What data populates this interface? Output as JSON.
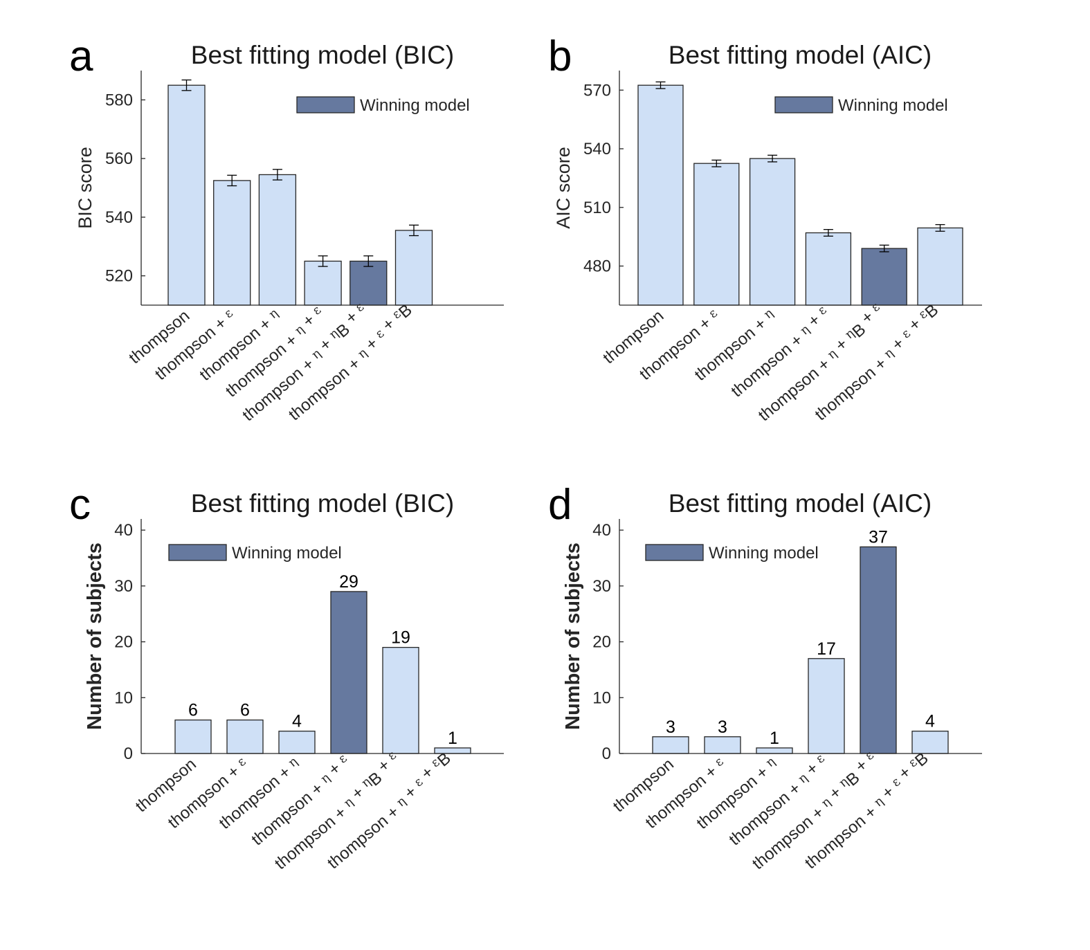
{
  "colors": {
    "bar_fill": "#cfe0f6",
    "winner_fill": "#66799f",
    "edge": "#262626"
  },
  "chart_data": [
    {
      "panel": "a",
      "type": "bar",
      "title": "Best fitting model (BIC)",
      "xlabel": "",
      "ylabel": "BIC score",
      "ylim": [
        510,
        590
      ],
      "yticks": [
        520,
        540,
        560,
        580
      ],
      "categories": [
        [
          "thompson"
        ],
        [
          "thompson + ",
          {
            "s": "ε"
          }
        ],
        [
          "thompson + ",
          {
            "s": "η"
          }
        ],
        [
          "thompson + ",
          {
            "s": "η"
          },
          " + ",
          {
            "s": "ε"
          }
        ],
        [
          "thompson + ",
          {
            "s": "η"
          },
          " + ",
          {
            "s": "η"
          },
          {
            "sub": "B"
          },
          " + ",
          {
            "s": "ε"
          }
        ],
        [
          "thompson + ",
          {
            "s": "η"
          },
          " + ",
          {
            "s": "ε"
          },
          " + ",
          {
            "s": "ε"
          },
          {
            "sub": "B"
          }
        ]
      ],
      "values": [
        585,
        552.5,
        554.5,
        525,
        525,
        535.5
      ],
      "errors": [
        1.8,
        1.8,
        1.8,
        1.8,
        1.8,
        1.8
      ],
      "winner_index": 4,
      "legend": {
        "label": "Winning model",
        "position": "top-right"
      },
      "bar_labels": false
    },
    {
      "panel": "b",
      "type": "bar",
      "title": "Best fitting model (AIC)",
      "xlabel": "",
      "ylabel": "AIC score",
      "ylim": [
        460,
        580
      ],
      "yticks": [
        480,
        510,
        540,
        570
      ],
      "categories": [
        [
          "thompson"
        ],
        [
          "thompson + ",
          {
            "s": "ε"
          }
        ],
        [
          "thompson + ",
          {
            "s": "η"
          }
        ],
        [
          "thompson + ",
          {
            "s": "η"
          },
          " + ",
          {
            "s": "ε"
          }
        ],
        [
          "thompson + ",
          {
            "s": "η"
          },
          " + ",
          {
            "s": "η"
          },
          {
            "sub": "B"
          },
          " + ",
          {
            "s": "ε"
          }
        ],
        [
          "thompson + ",
          {
            "s": "η"
          },
          " + ",
          {
            "s": "ε"
          },
          " + ",
          {
            "s": "ε"
          },
          {
            "sub": "B"
          }
        ]
      ],
      "values": [
        572.5,
        532.5,
        535,
        497,
        489,
        499.5
      ],
      "errors": [
        1.7,
        1.7,
        1.7,
        1.7,
        1.7,
        1.7
      ],
      "winner_index": 4,
      "legend": {
        "label": "Winning model",
        "position": "top-right"
      },
      "bar_labels": false
    },
    {
      "panel": "c",
      "type": "bar",
      "title": "Best fitting model (BIC)",
      "xlabel": "",
      "ylabel": "Number of subjects",
      "ylim": [
        0,
        42
      ],
      "yticks": [
        0,
        10,
        20,
        30,
        40
      ],
      "categories": [
        [
          "thompson"
        ],
        [
          "thompson + ",
          {
            "s": "ε"
          }
        ],
        [
          "thompson + ",
          {
            "s": "η"
          }
        ],
        [
          "thompson + ",
          {
            "s": "η"
          },
          " + ",
          {
            "s": "ε"
          }
        ],
        [
          "thompson + ",
          {
            "s": "η"
          },
          " + ",
          {
            "s": "η"
          },
          {
            "sub": "B"
          },
          " + ",
          {
            "s": "ε"
          }
        ],
        [
          "thompson + ",
          {
            "s": "η"
          },
          " + ",
          {
            "s": "ε"
          },
          " + ",
          {
            "s": "ε"
          },
          {
            "sub": "B"
          }
        ]
      ],
      "values": [
        6,
        6,
        4,
        29,
        19,
        1
      ],
      "winner_index": 3,
      "legend": {
        "label": "Winning model",
        "position": "top-left"
      },
      "bar_labels": true
    },
    {
      "panel": "d",
      "type": "bar",
      "title": "Best fitting model (AIC)",
      "xlabel": "",
      "ylabel": "Number of subjects",
      "ylim": [
        0,
        42
      ],
      "yticks": [
        0,
        10,
        20,
        30,
        40
      ],
      "categories": [
        [
          "thompson"
        ],
        [
          "thompson + ",
          {
            "s": "ε"
          }
        ],
        [
          "thompson + ",
          {
            "s": "η"
          }
        ],
        [
          "thompson + ",
          {
            "s": "η"
          },
          " + ",
          {
            "s": "ε"
          }
        ],
        [
          "thompson + ",
          {
            "s": "η"
          },
          " + ",
          {
            "s": "η"
          },
          {
            "sub": "B"
          },
          " + ",
          {
            "s": "ε"
          }
        ],
        [
          "thompson + ",
          {
            "s": "η"
          },
          " + ",
          {
            "s": "ε"
          },
          " + ",
          {
            "s": "ε"
          },
          {
            "sub": "B"
          }
        ]
      ],
      "values": [
        3,
        3,
        1,
        17,
        37,
        4
      ],
      "winner_index": 4,
      "legend": {
        "label": "Winning model",
        "position": "top-left"
      },
      "bar_labels": true
    }
  ]
}
